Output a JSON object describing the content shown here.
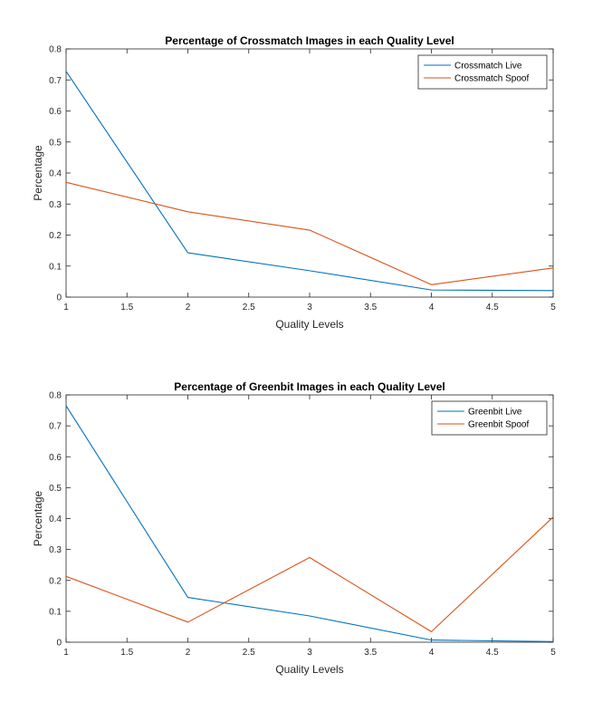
{
  "chart_data": [
    {
      "type": "line",
      "title": "Percentage of Crossmatch Images in each Quality Level",
      "xlabel": "Quality Levels",
      "ylabel": "Percentage",
      "xlim": [
        1,
        5
      ],
      "ylim": [
        0,
        0.8
      ],
      "xticks": [
        1,
        1.5,
        2,
        2.5,
        3,
        3.5,
        4,
        4.5,
        5
      ],
      "xtick_labels": [
        "1",
        "1.5",
        "2",
        "2.5",
        "3",
        "3.5",
        "4",
        "4.5",
        "5"
      ],
      "yticks": [
        0,
        0.1,
        0.2,
        0.3,
        0.4,
        0.5,
        0.6,
        0.7,
        0.8
      ],
      "ytick_labels": [
        "0",
        "0.1",
        "0.2",
        "0.3",
        "0.4",
        "0.5",
        "0.6",
        "0.7",
        "0.8"
      ],
      "grid": false,
      "legend_position": "top-right",
      "x": [
        1,
        2,
        3,
        4,
        5
      ],
      "series": [
        {
          "name": "Crossmatch Live",
          "color": "#0072BD",
          "values": [
            0.728,
            0.143,
            0.085,
            0.023,
            0.021
          ]
        },
        {
          "name": "Crossmatch Spoof",
          "color": "#D95319",
          "values": [
            0.37,
            0.275,
            0.216,
            0.04,
            0.094
          ]
        }
      ]
    },
    {
      "type": "line",
      "title": "Percentage of Greenbit Images in each Quality Level",
      "xlabel": "Quality Levels",
      "ylabel": "Percentage",
      "xlim": [
        1,
        5
      ],
      "ylim": [
        0,
        0.8
      ],
      "xticks": [
        1,
        1.5,
        2,
        2.5,
        3,
        3.5,
        4,
        4.5,
        5
      ],
      "xtick_labels": [
        "1",
        "1.5",
        "2",
        "2.5",
        "3",
        "3.5",
        "4",
        "4.5",
        "5"
      ],
      "yticks": [
        0,
        0.1,
        0.2,
        0.3,
        0.4,
        0.5,
        0.6,
        0.7,
        0.8
      ],
      "ytick_labels": [
        "0",
        "0.1",
        "0.2",
        "0.3",
        "0.4",
        "0.5",
        "0.6",
        "0.7",
        "0.8"
      ],
      "grid": false,
      "legend_position": "top-right",
      "x": [
        1,
        2,
        3,
        4,
        5
      ],
      "series": [
        {
          "name": "Greenbit Live",
          "color": "#0072BD",
          "values": [
            0.765,
            0.145,
            0.085,
            0.007,
            0.002
          ]
        },
        {
          "name": "Greenbit Spoof",
          "color": "#D95319",
          "values": [
            0.213,
            0.065,
            0.274,
            0.034,
            0.405
          ]
        }
      ]
    }
  ]
}
